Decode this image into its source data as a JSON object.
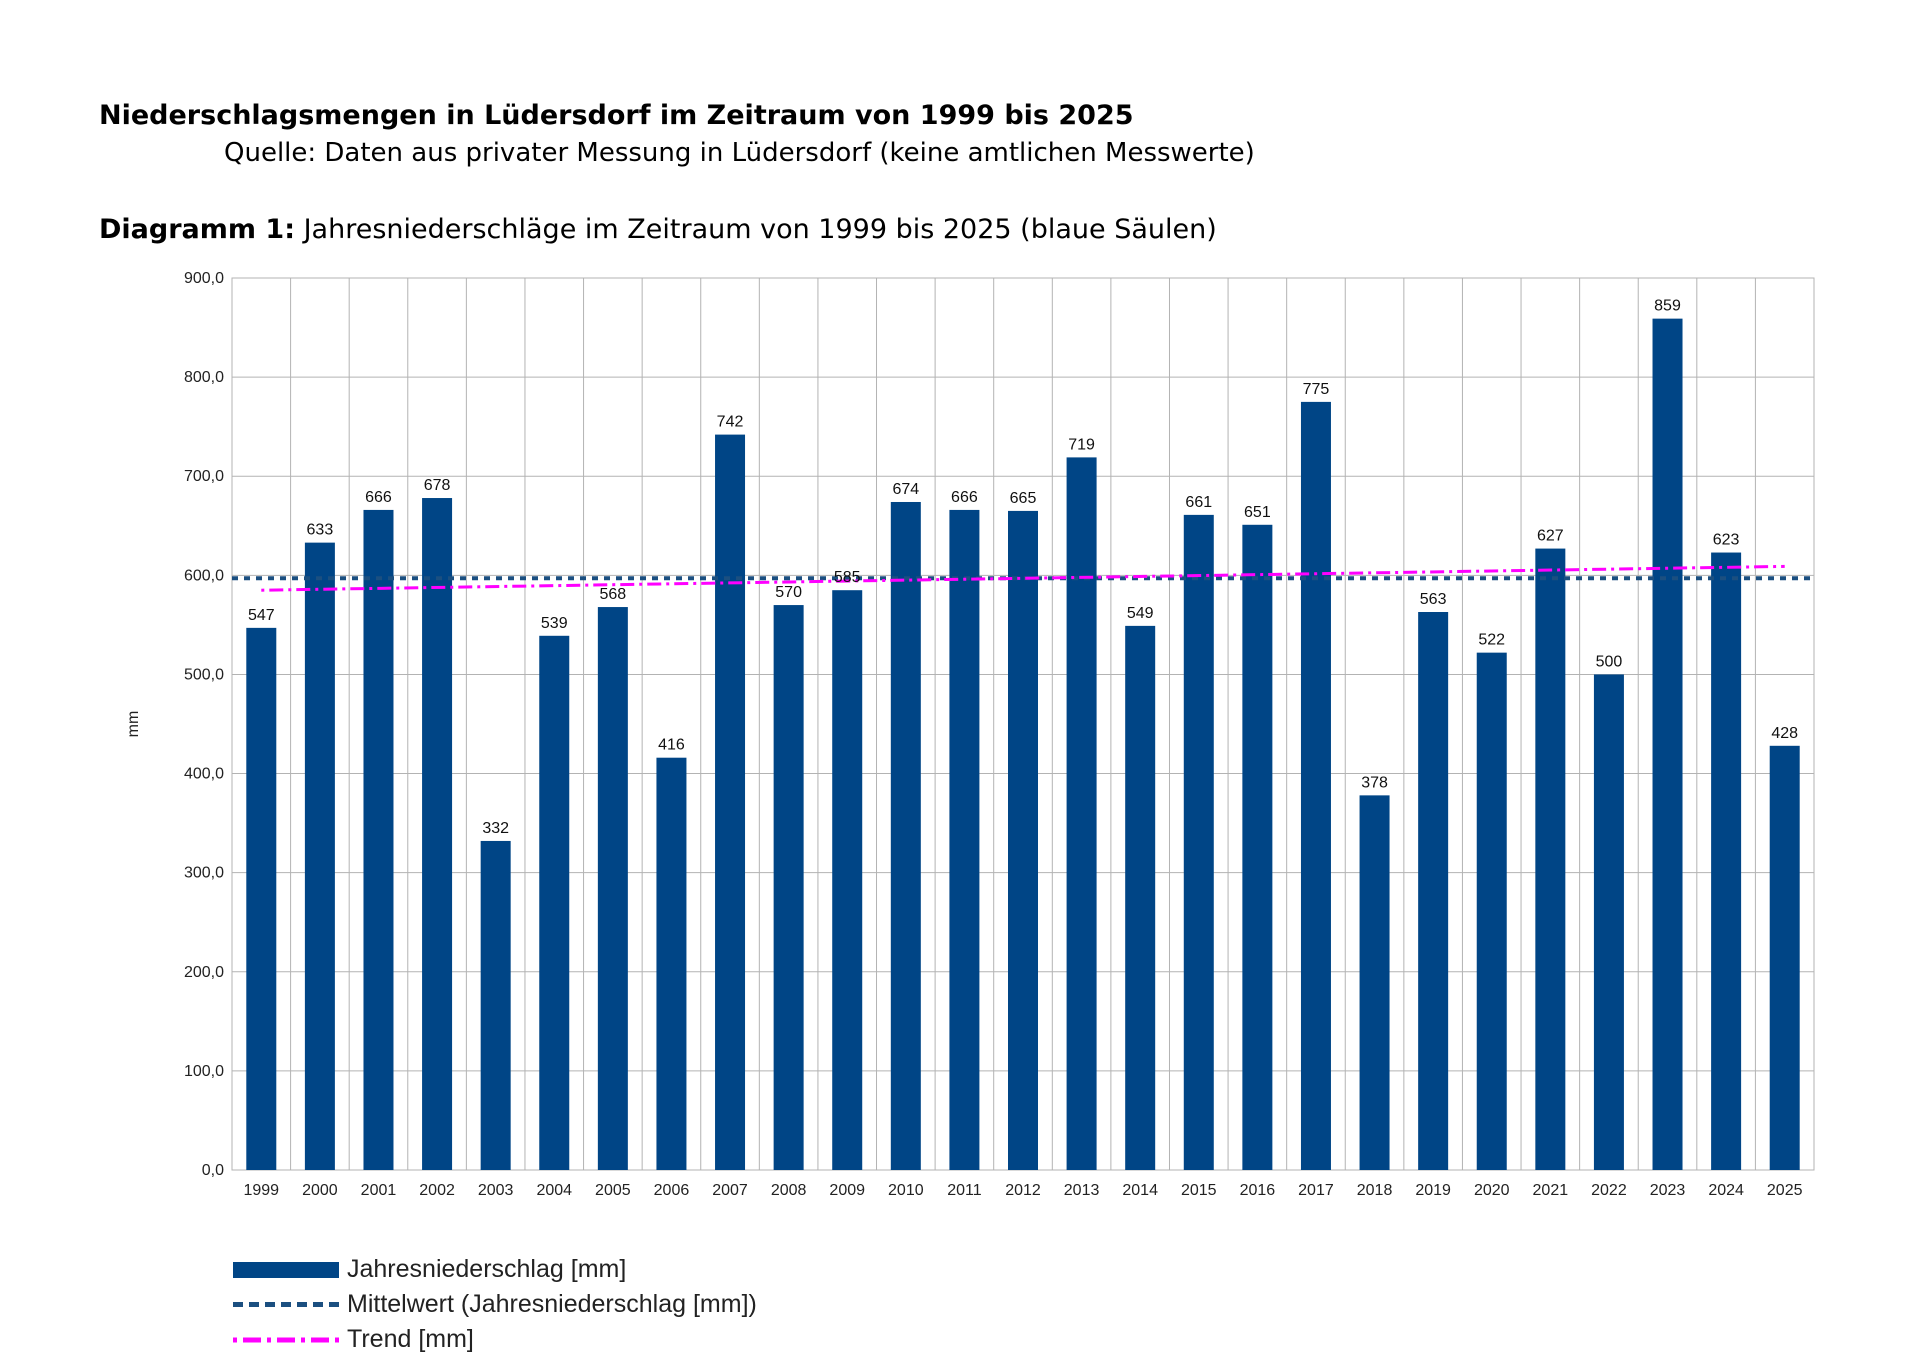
{
  "heading": "Niederschlagsmengen in Lüdersdorf im Zeitraum von 1999 bis 2025",
  "source": "Quelle: Daten aus privater Messung in Lüdersdorf (keine amtlichen Messwerte)",
  "diagram_title": {
    "prefix": "Diagramm 1:",
    "text": " Jahresniederschläge im Zeitraum von 1999 bis 2025 (blaue Säulen)"
  },
  "chart_data": {
    "type": "bar",
    "ylabel": "mm",
    "ylim": [
      0,
      900
    ],
    "yticks": [
      "0,0",
      "100,0",
      "200,0",
      "300,0",
      "400,0",
      "500,0",
      "600,0",
      "700,0",
      "800,0",
      "900,0"
    ],
    "categories": [
      "1999",
      "2000",
      "2001",
      "2002",
      "2003",
      "2004",
      "2005",
      "2006",
      "2007",
      "2008",
      "2009",
      "2010",
      "2011",
      "2012",
      "2013",
      "2014",
      "2015",
      "2016",
      "2017",
      "2018",
      "2019",
      "2020",
      "2021",
      "2022",
      "2023",
      "2024",
      "2025"
    ],
    "series": [
      {
        "name": "Jahresniederschlag [mm]",
        "color": "#004586",
        "values": [
          547,
          633,
          666,
          678,
          332,
          539,
          568,
          416,
          742,
          570,
          585,
          674,
          666,
          665,
          719,
          549,
          661,
          651,
          775,
          378,
          563,
          522,
          627,
          500,
          859,
          623,
          428
        ]
      }
    ],
    "mean": {
      "name": "Mittelwert (Jahresniederschlag [mm])",
      "value": 597,
      "color": "#1b4f80"
    },
    "trend": {
      "name": "Trend [mm]",
      "start": 585,
      "end": 609,
      "color": "#ff00ff"
    },
    "grid": true,
    "legend_position": "bottom-left"
  }
}
